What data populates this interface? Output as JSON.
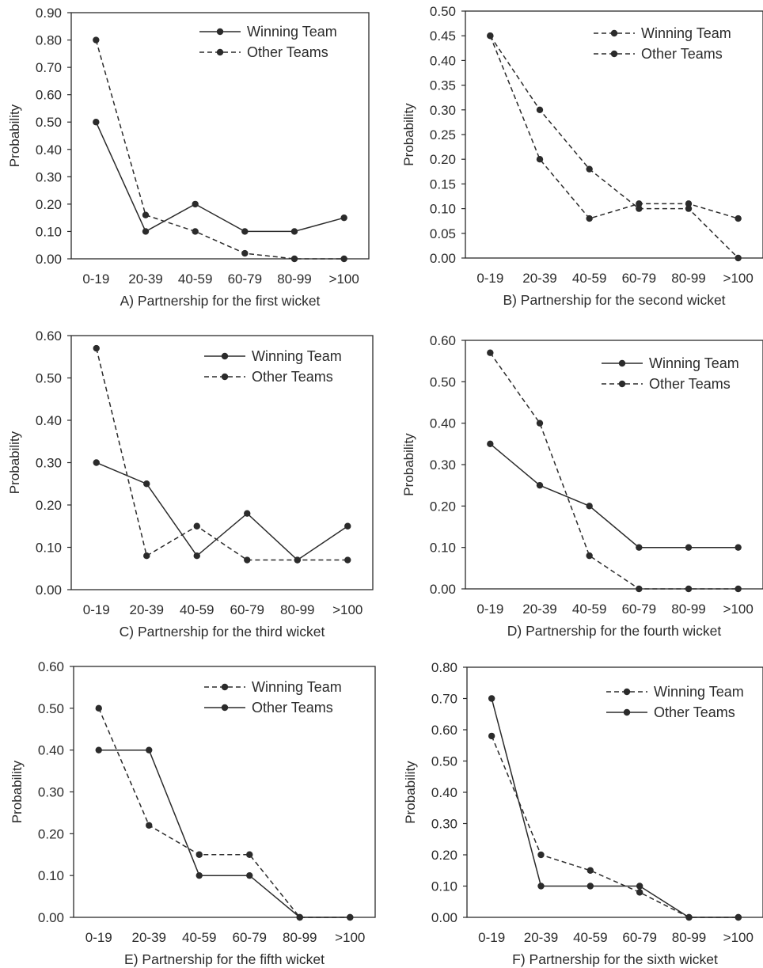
{
  "chart_data": [
    {
      "type": "line",
      "caption": "A) Partnership for the first wicket",
      "xlabel": "",
      "ylabel": "Probability",
      "categories": [
        "0-19",
        "20-39",
        "40-59",
        "60-79",
        "80-99",
        ">100"
      ],
      "ylim": [
        0,
        0.9
      ],
      "yticks": [
        "0.00",
        "0.10",
        "0.20",
        "0.30",
        "0.40",
        "0.50",
        "0.60",
        "0.70",
        "0.80",
        "0.90"
      ],
      "legend_position": "top-right",
      "series": [
        {
          "name": "Winning Team",
          "style": "solid",
          "values": [
            0.5,
            0.1,
            0.2,
            0.1,
            0.1,
            0.15
          ]
        },
        {
          "name": "Other Teams",
          "style": "dashed",
          "values": [
            0.8,
            0.16,
            0.1,
            0.02,
            0.0,
            0.0
          ]
        }
      ]
    },
    {
      "type": "line",
      "caption": "B) Partnership for the second wicket",
      "xlabel": "",
      "ylabel": "Probability",
      "categories": [
        "0-19",
        "20-39",
        "40-59",
        "60-79",
        "80-99",
        ">100"
      ],
      "ylim": [
        0,
        0.5
      ],
      "yticks": [
        "0.00",
        "0.05",
        "0.10",
        "0.15",
        "0.20",
        "0.25",
        "0.30",
        "0.35",
        "0.40",
        "0.45",
        "0.50"
      ],
      "legend_position": "top-right",
      "series": [
        {
          "name": "Winning Team",
          "style": "dashed",
          "values": [
            0.45,
            0.2,
            0.08,
            0.11,
            0.11,
            0.08
          ]
        },
        {
          "name": "Other Teams",
          "style": "dashed",
          "values": [
            0.45,
            0.3,
            0.18,
            0.1,
            0.1,
            0.0
          ]
        }
      ]
    },
    {
      "type": "line",
      "caption": "C) Partnership for the third wicket",
      "xlabel": "",
      "ylabel": "Probability",
      "categories": [
        "0-19",
        "20-39",
        "40-59",
        "60-79",
        "80-99",
        ">100"
      ],
      "ylim": [
        0,
        0.6
      ],
      "yticks": [
        "0.00",
        "0.10",
        "0.20",
        "0.30",
        "0.40",
        "0.50",
        "0.60"
      ],
      "legend_position": "top-right",
      "series": [
        {
          "name": "Winning Team",
          "style": "solid",
          "values": [
            0.3,
            0.25,
            0.08,
            0.18,
            0.07,
            0.15
          ]
        },
        {
          "name": "Other Teams",
          "style": "dashed",
          "values": [
            0.57,
            0.08,
            0.15,
            0.07,
            0.07,
            0.07
          ]
        }
      ]
    },
    {
      "type": "line",
      "caption": "D) Partnership for the fourth wicket",
      "xlabel": "",
      "ylabel": "Probability",
      "categories": [
        "0-19",
        "20-39",
        "40-59",
        "60-79",
        "80-99",
        ">100"
      ],
      "ylim": [
        0,
        0.6
      ],
      "yticks": [
        "0.00",
        "0.10",
        "0.20",
        "0.30",
        "0.40",
        "0.50",
        "0.60"
      ],
      "legend_position": "top-right",
      "series": [
        {
          "name": "Winning Team",
          "style": "solid",
          "values": [
            0.35,
            0.25,
            0.2,
            0.1,
            0.1,
            0.1
          ]
        },
        {
          "name": "Other Teams",
          "style": "dashed",
          "values": [
            0.57,
            0.4,
            0.08,
            0.0,
            0.0,
            0.0
          ]
        }
      ]
    },
    {
      "type": "line",
      "caption": "E) Partnership for the fifth wicket",
      "xlabel": "",
      "ylabel": "Probability",
      "categories": [
        "0-19",
        "20-39",
        "40-59",
        "60-79",
        "80-99",
        ">100"
      ],
      "ylim": [
        0,
        0.6
      ],
      "yticks": [
        "0.00",
        "0.10",
        "0.20",
        "0.30",
        "0.40",
        "0.50",
        "0.60"
      ],
      "legend_position": "top-right",
      "series": [
        {
          "name": "Winning Team",
          "style": "dashed",
          "values": [
            0.5,
            0.22,
            0.15,
            0.15,
            0.0,
            0.0
          ]
        },
        {
          "name": "Other Teams",
          "style": "solid",
          "values": [
            0.4,
            0.4,
            0.1,
            0.1,
            0.0,
            0.0
          ]
        }
      ]
    },
    {
      "type": "line",
      "caption": "F) Partnership for the sixth wicket",
      "xlabel": "",
      "ylabel": "Probability",
      "categories": [
        "0-19",
        "20-39",
        "40-59",
        "60-79",
        "80-99",
        ">100"
      ],
      "ylim": [
        0,
        0.8
      ],
      "yticks": [
        "0.00",
        "0.10",
        "0.20",
        "0.30",
        "0.40",
        "0.50",
        "0.60",
        "0.70",
        "0.80"
      ],
      "legend_position": "top-right",
      "series": [
        {
          "name": "Winning Team",
          "style": "dashed",
          "values": [
            0.58,
            0.2,
            0.15,
            0.08,
            0.0,
            0.0
          ]
        },
        {
          "name": "Other Teams",
          "style": "solid",
          "values": [
            0.7,
            0.1,
            0.1,
            0.1,
            0.0,
            0.0
          ]
        }
      ]
    }
  ],
  "colors": {
    "line": "#2b2b2b",
    "frame": "#2b2b2b",
    "background": "#ffffff"
  }
}
